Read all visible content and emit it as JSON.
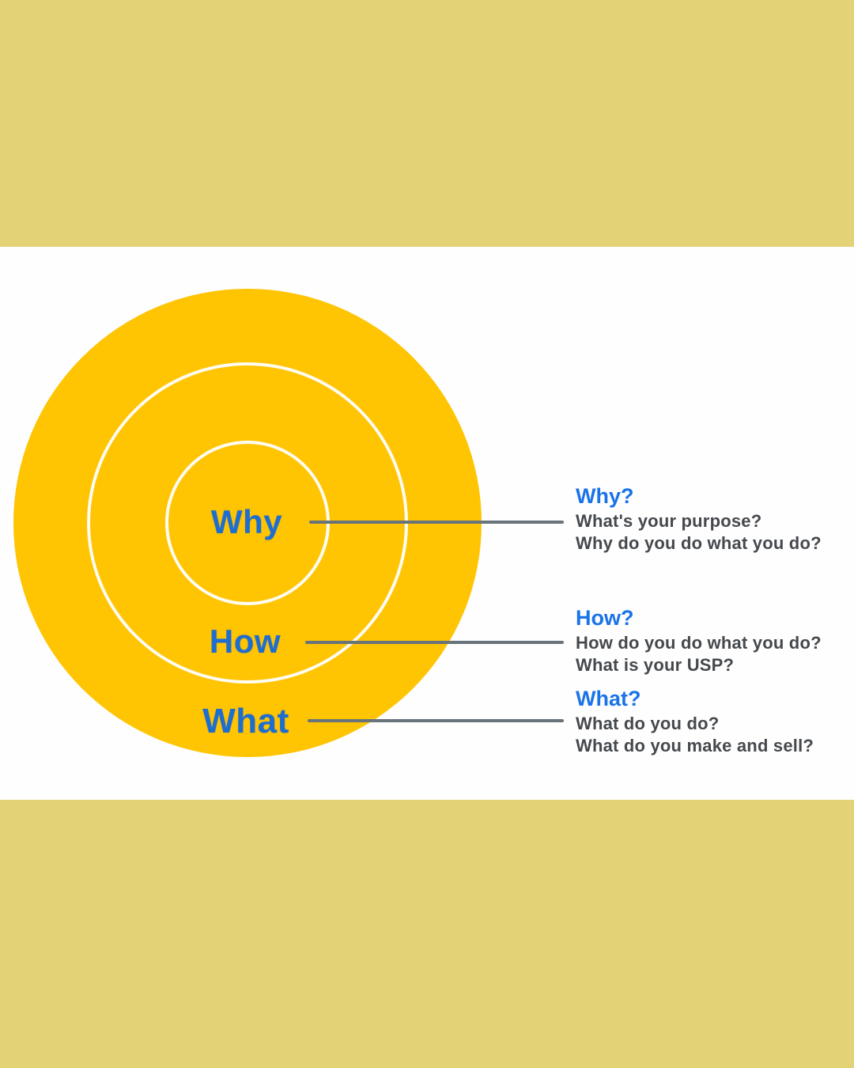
{
  "colors": {
    "khaki": "#e3d276",
    "white_band": "#fefefe",
    "gold": "#ffc402",
    "ring_stroke": "#ffffff",
    "label_blue": "#1e6ed1",
    "heading_blue": "#1a73e8",
    "body_gray": "#45494d",
    "line_gray": "#68737a"
  },
  "diagram": {
    "type": "golden-circle",
    "rings": [
      {
        "label": "Why"
      },
      {
        "label": "How"
      },
      {
        "label": "What"
      }
    ]
  },
  "annotations": [
    {
      "heading": "Why?",
      "lines": [
        "What's your purpose?",
        "Why do you do what you do?"
      ]
    },
    {
      "heading": "How?",
      "lines": [
        "How do you do what you do?",
        "What is your USP?"
      ]
    },
    {
      "heading": "What?",
      "lines": [
        "What do you do?",
        "What do you make and sell?"
      ]
    }
  ]
}
